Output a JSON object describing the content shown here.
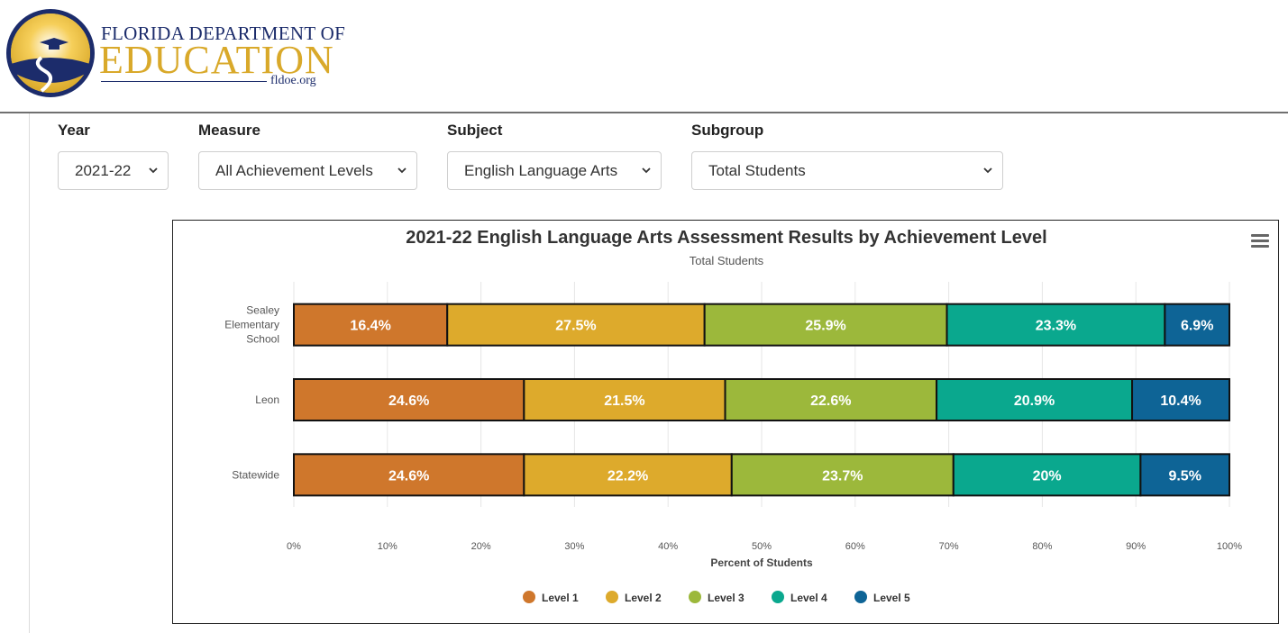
{
  "header": {
    "logo_top": "FLORIDA DEPARTMENT OF",
    "logo_main": "EDUCATION",
    "logo_url": "fldoe.org"
  },
  "filters": {
    "year": {
      "label": "Year",
      "value": "2021-22"
    },
    "measure": {
      "label": "Measure",
      "value": "All Achievement Levels"
    },
    "subject": {
      "label": "Subject",
      "value": "English Language Arts"
    },
    "subgroup": {
      "label": "Subgroup",
      "value": "Total Students"
    }
  },
  "chart_data": {
    "type": "bar",
    "orientation": "horizontal",
    "stacked": true,
    "title": "2021-22 English Language Arts Assessment Results by Achievement Level",
    "subtitle": "Total Students",
    "categories": [
      "Sealey Elementary School",
      "Leon",
      "Statewide"
    ],
    "category_lines": [
      [
        "Sealey",
        "Elementary",
        "School"
      ],
      [
        "Leon"
      ],
      [
        "Statewide"
      ]
    ],
    "series": [
      {
        "name": "Level 1",
        "color": "#cf772c",
        "values": [
          16.4,
          24.6,
          24.6
        ],
        "labels": [
          "16.4%",
          "24.6%",
          "24.6%"
        ]
      },
      {
        "name": "Level 2",
        "color": "#ddaa2c",
        "values": [
          27.5,
          21.5,
          22.2
        ],
        "labels": [
          "27.5%",
          "21.5%",
          "22.2%"
        ]
      },
      {
        "name": "Level 3",
        "color": "#9cb83b",
        "values": [
          25.9,
          22.6,
          23.7
        ],
        "labels": [
          "25.9%",
          "22.6%",
          "23.7%"
        ]
      },
      {
        "name": "Level 4",
        "color": "#0aa88e",
        "values": [
          23.3,
          20.9,
          20.0
        ],
        "labels": [
          "23.3%",
          "20.9%",
          "20%"
        ]
      },
      {
        "name": "Level 5",
        "color": "#0e6496",
        "values": [
          6.9,
          10.4,
          9.5
        ],
        "labels": [
          "6.9%",
          "10.4%",
          "9.5%"
        ]
      }
    ],
    "xlabel": "Percent of Students",
    "xlim": [
      0,
      100
    ],
    "xticks": [
      "0%",
      "10%",
      "20%",
      "30%",
      "40%",
      "50%",
      "60%",
      "70%",
      "80%",
      "90%",
      "100%"
    ],
    "grid": true,
    "legend": "bottom-center"
  }
}
